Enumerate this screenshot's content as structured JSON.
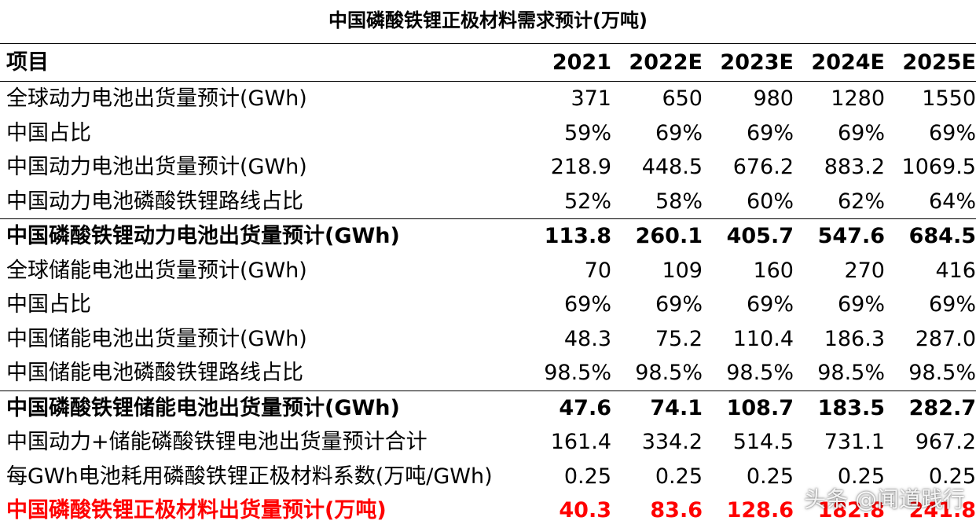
{
  "title": "中国磷酸铁锂正极材料需求预计(万吨)",
  "header": [
    "项目",
    "2021",
    "2022E",
    "2023E",
    "2024E",
    "2025E"
  ],
  "rows": [
    {
      "label": "全球动力电池出货量预计(GWh)",
      "values": [
        "371",
        "650",
        "980",
        "1280",
        "1550"
      ]
    },
    {
      "label": "中国占比",
      "values": [
        "59%",
        "69%",
        "69%",
        "69%",
        "69%"
      ]
    },
    {
      "label": "中国动力电池出货量预计(GWh)",
      "values": [
        "218.9",
        "448.5",
        "676.2",
        "883.2",
        "1069.5"
      ]
    },
    {
      "label": "中国动力电池磷酸铁锂路线占比",
      "values": [
        "52%",
        "58%",
        "60%",
        "62%",
        "64%"
      ]
    },
    {
      "label": "中国磷酸铁锂动力电池出货量预计(GWh)",
      "values": [
        "113.8",
        "260.1",
        "405.7",
        "547.6",
        "684.5"
      ]
    },
    {
      "label": "全球储能电池出货量预计(GWh)",
      "values": [
        "70",
        "109",
        "160",
        "270",
        "416"
      ]
    },
    {
      "label": "中国占比",
      "values": [
        "69%",
        "69%",
        "69%",
        "69%",
        "69%"
      ]
    },
    {
      "label": "中国储能电池出货量预计(GWh)",
      "values": [
        "48.3",
        "75.2",
        "110.4",
        "186.3",
        "287.0"
      ]
    },
    {
      "label": "中国储能电池磷酸铁锂路线占比",
      "values": [
        "98.5%",
        "98.5%",
        "98.5%",
        "98.5%",
        "98.5%"
      ]
    },
    {
      "label": "中国磷酸铁锂储能电池出货量预计(GWh)",
      "values": [
        "47.6",
        "74.1",
        "108.7",
        "183.5",
        "282.7"
      ]
    },
    {
      "label": "中国动力+储能磷酸铁锂电池出货量预计合计",
      "values": [
        "161.4",
        "334.2",
        "514.5",
        "731.1",
        "967.2"
      ]
    },
    {
      "label": "每GWh电池耗用磷酸铁锂正极材料系数(万吨/GWh)",
      "values": [
        "0.25",
        "0.25",
        "0.25",
        "0.25",
        "0.25"
      ]
    },
    {
      "label": "中国磷酸铁锂正极材料出货量预计(万吨)",
      "values": [
        "40.3",
        "83.6",
        "128.6",
        "182.8",
        "241.8"
      ]
    }
  ],
  "colors": {
    "highlight": "#ff0000",
    "text": "#000000"
  },
  "watermark": "头条 @闻道践行"
}
